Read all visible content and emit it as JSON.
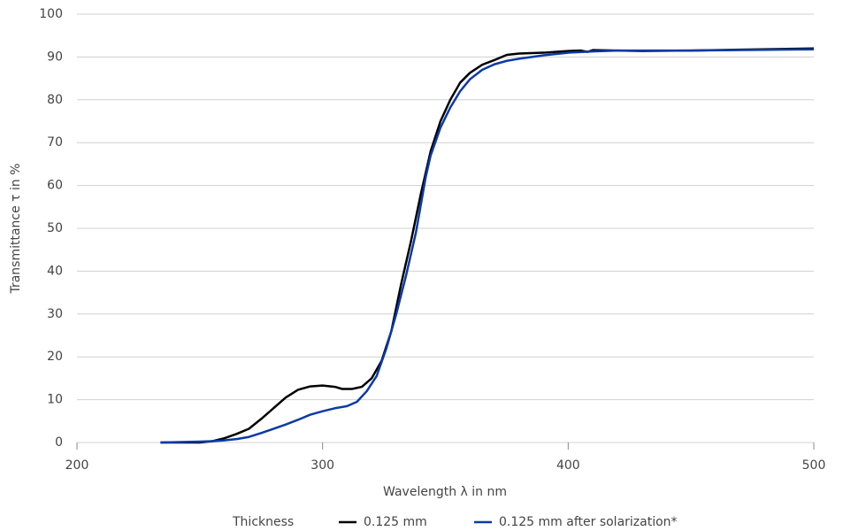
{
  "chart_data": {
    "type": "line",
    "x_label": "Wavelength λ in nm",
    "y_label": "Transmittance τ in %",
    "legend_title": "Thickness",
    "legend": "bottom",
    "grid": true,
    "xlim": [
      200,
      500
    ],
    "xticks": [
      200,
      300,
      400,
      500
    ],
    "ylim": [
      0,
      100
    ],
    "yticks": [
      0,
      10,
      20,
      30,
      40,
      50,
      60,
      70,
      80,
      90,
      100
    ],
    "series": [
      {
        "name": "0.125 mm",
        "color": "#000000",
        "x": [
          234,
          240,
          250,
          255,
          260,
          265,
          270,
          275,
          280,
          285,
          290,
          295,
          300,
          305,
          308,
          312,
          316,
          320,
          324,
          328,
          332,
          336,
          340,
          344,
          348,
          352,
          356,
          360,
          365,
          370,
          375,
          380,
          390,
          400,
          405,
          408,
          410,
          420,
          430,
          450,
          470,
          500
        ],
        "values": [
          0,
          0,
          0,
          0.3,
          1,
          2,
          3.2,
          5.5,
          8,
          10.5,
          12.3,
          13.1,
          13.3,
          13,
          12.5,
          12.5,
          13,
          15,
          19,
          26,
          37,
          47,
          58,
          68,
          75,
          80,
          84,
          86.3,
          88.2,
          89.3,
          90.5,
          90.8,
          91,
          91.4,
          91.5,
          91.2,
          91.6,
          91.5,
          91.4,
          91.5,
          91.7,
          92
        ]
      },
      {
        "name": "0.125 mm after solarization*",
        "color": "#0a3aa8",
        "x": [
          234,
          250,
          255,
          260,
          265,
          270,
          275,
          280,
          285,
          290,
          295,
          300,
          305,
          310,
          314,
          318,
          322,
          326,
          330,
          334,
          338,
          342,
          344,
          348,
          352,
          356,
          360,
          365,
          370,
          375,
          380,
          390,
          400,
          410,
          420,
          450,
          500
        ],
        "values": [
          0,
          0.2,
          0.3,
          0.5,
          0.8,
          1.3,
          2.2,
          3.2,
          4.2,
          5.3,
          6.5,
          7.3,
          8,
          8.5,
          9.5,
          12,
          15.5,
          22,
          30,
          39,
          49,
          62,
          67,
          73.5,
          78.2,
          82,
          84.8,
          87,
          88.3,
          89.1,
          89.6,
          90.4,
          91,
          91.3,
          91.5,
          91.5,
          91.8
        ]
      }
    ]
  }
}
